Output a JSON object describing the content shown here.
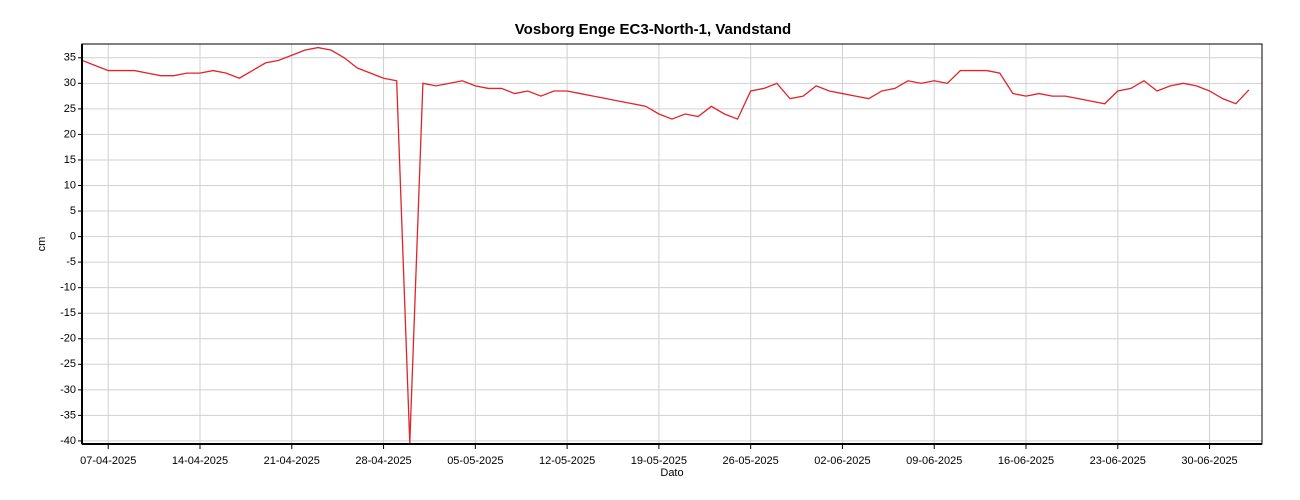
{
  "chart_data": {
    "type": "line",
    "title": "Vosborg Enge EC3-North-1, Vandstand",
    "x_label": "Dato",
    "y_label": "cm",
    "color": "#e0242a",
    "grid": true,
    "xlim": [
      "05-04-2025",
      "04-07-2025"
    ],
    "xticks": [
      "07-04-2025",
      "14-04-2025",
      "21-04-2025",
      "28-04-2025",
      "05-05-2025",
      "12-05-2025",
      "19-05-2025",
      "26-05-2025",
      "02-06-2025",
      "09-06-2025",
      "16-06-2025",
      "23-06-2025",
      "30-06-2025"
    ],
    "ylim": [
      -40.6,
      37.7
    ],
    "yticks": [
      35,
      30,
      25,
      20,
      15,
      10,
      5,
      0,
      -5,
      -10,
      -15,
      -20,
      -25,
      -30,
      -35,
      -40
    ],
    "x": [
      "05-04-2025",
      "06-04-2025",
      "07-04-2025",
      "08-04-2025",
      "09-04-2025",
      "10-04-2025",
      "11-04-2025",
      "12-04-2025",
      "13-04-2025",
      "14-04-2025",
      "15-04-2025",
      "16-04-2025",
      "17-04-2025",
      "18-04-2025",
      "19-04-2025",
      "20-04-2025",
      "21-04-2025",
      "22-04-2025",
      "23-04-2025",
      "24-04-2025",
      "25-04-2025",
      "26-04-2025",
      "27-04-2025",
      "28-04-2025",
      "29-04-2025",
      "30-04-2025",
      "01-05-2025",
      "02-05-2025",
      "03-05-2025",
      "04-05-2025",
      "05-05-2025",
      "06-05-2025",
      "07-05-2025",
      "08-05-2025",
      "09-05-2025",
      "10-05-2025",
      "11-05-2025",
      "12-05-2025",
      "13-05-2025",
      "14-05-2025",
      "15-05-2025",
      "16-05-2025",
      "17-05-2025",
      "18-05-2025",
      "19-05-2025",
      "20-05-2025",
      "21-05-2025",
      "22-05-2025",
      "23-05-2025",
      "24-05-2025",
      "25-05-2025",
      "26-05-2025",
      "27-05-2025",
      "28-05-2025",
      "29-05-2025",
      "30-05-2025",
      "31-05-2025",
      "01-06-2025",
      "02-06-2025",
      "03-06-2025",
      "04-06-2025",
      "05-06-2025",
      "06-06-2025",
      "07-06-2025",
      "08-06-2025",
      "09-06-2025",
      "10-06-2025",
      "11-06-2025",
      "12-06-2025",
      "13-06-2025",
      "14-06-2025",
      "15-06-2025",
      "16-06-2025",
      "17-06-2025",
      "18-06-2025",
      "19-06-2025",
      "20-06-2025",
      "21-06-2025",
      "22-06-2025",
      "23-06-2025",
      "24-06-2025",
      "25-06-2025",
      "26-06-2025",
      "27-06-2025",
      "28-06-2025",
      "29-06-2025",
      "30-06-2025",
      "01-07-2025",
      "02-07-2025",
      "03-07-2025"
    ],
    "values": [
      34.5,
      33.5,
      32.5,
      32.5,
      32.5,
      32,
      31.5,
      31.5,
      32,
      32,
      32.5,
      32,
      31,
      32.5,
      34,
      34.5,
      35.5,
      36.5,
      37,
      36.5,
      35,
      33,
      32,
      31,
      30.5,
      -40.5,
      30,
      29.5,
      30,
      30.5,
      29.5,
      29,
      29,
      28,
      28.5,
      27.5,
      28.5,
      28.5,
      28,
      27.5,
      27,
      26.5,
      26,
      25.5,
      24,
      23,
      24,
      23.5,
      25.5,
      24,
      23,
      28.5,
      29,
      30,
      27,
      27.5,
      29.5,
      28.5,
      28,
      27.5,
      27,
      28.5,
      29,
      30.5,
      30,
      30.5,
      30,
      32.5,
      32.5,
      32.5,
      32,
      28,
      27.5,
      28,
      27.5,
      27.5,
      27,
      26.5,
      26,
      28.5,
      29,
      30.5,
      28.5,
      29.5,
      30,
      29.5,
      28.5,
      27,
      26,
      28.7
    ]
  }
}
